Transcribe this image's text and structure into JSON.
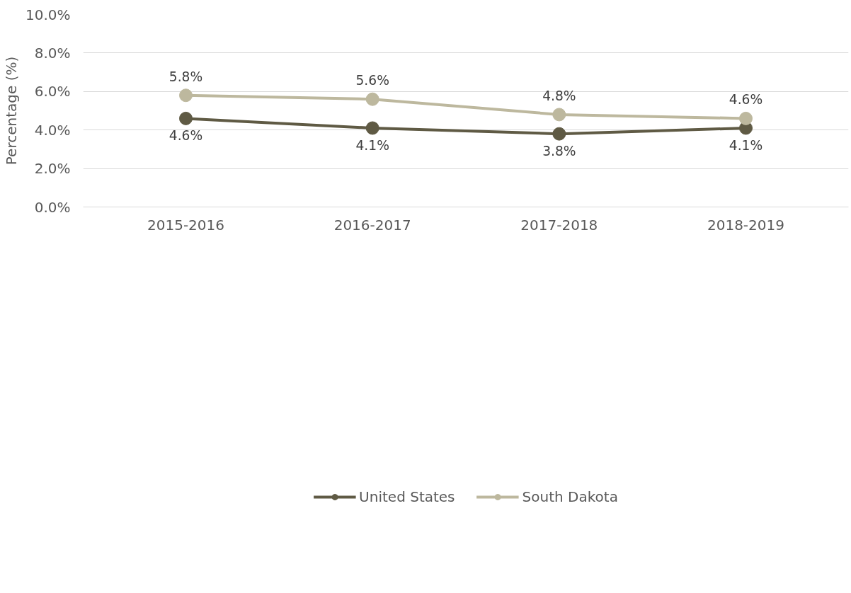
{
  "chart_data": {
    "type": "line",
    "ylabel": "Percentage (%)",
    "categories": [
      "2015-2016",
      "2016-2017",
      "2017-2018",
      "2018-2019"
    ],
    "series": [
      {
        "name": "United States",
        "color": "#5f5a44",
        "values": [
          4.6,
          4.1,
          3.8,
          4.1
        ],
        "value_labels": [
          "4.6%",
          "4.1%",
          "3.8%",
          "4.1%"
        ]
      },
      {
        "name": "South Dakota",
        "color": "#bdb89e",
        "values": [
          5.8,
          5.6,
          4.8,
          4.6
        ],
        "value_labels": [
          "5.8%",
          "5.6%",
          "4.8%",
          "4.6%"
        ]
      }
    ],
    "ylim": [
      0,
      10
    ],
    "yticks": [
      {
        "value": 0,
        "label": "0.0%"
      },
      {
        "value": 2,
        "label": "2.0%"
      },
      {
        "value": 4,
        "label": "4.0%"
      },
      {
        "value": 6,
        "label": "6.0%"
      },
      {
        "value": 8,
        "label": "8.0%"
      },
      {
        "value": 10,
        "label": "10.0%"
      }
    ],
    "grid": "y",
    "legend": "bottom",
    "marker": "circle",
    "line_style": "solid"
  }
}
